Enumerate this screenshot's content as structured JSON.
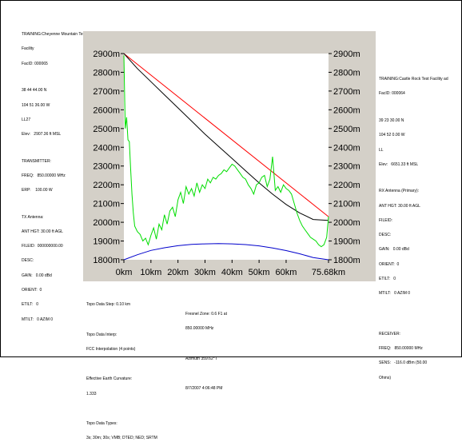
{
  "left_panel": {
    "title": "TRAINING:Cheyenne Mountain Test",
    "title2": "Facility",
    "facid": "FacID: 000065",
    "lat": "38 44 44.00 N",
    "lon": "104 51 36.00 W",
    "datum": "LL27",
    "elev": "Elev:   2907.36 ft MSL",
    "transmitter_header": "TRANSMITTER:",
    "freq": "FREQ:   850.00000 MHz",
    "erp": "ERP:    100.00 W",
    "antenna_header": "TX Antenna:",
    "ant_hgt": "ANT HGT: 30.00 ft AGL",
    "fileid": "FILEID:  000000000.00",
    "desc": "DESC:",
    "gain": "GAIN:   0.00 dBd",
    "orient": "ORIENT:  0",
    "etilt": "ETILT:   0",
    "mtilt": "MTILT:   0 AZIM 0"
  },
  "right_panel": {
    "title": "TRAINING:Castle Rock Test Facility ad",
    "facid": "FacID: 000064",
    "lat": "39 23 30.00 N",
    "lon": "104 52 0.00 W",
    "datum": "LL",
    "elev": "Elev:   6651.33 ft MSL",
    "antenna_header": "RX Antenna (Primary):",
    "ant_hgt": "ANT HGT: 30.00 ft AGL",
    "fileid": "FILEID:",
    "desc": "DESC:",
    "gain": "GAIN:   0.00 dBd",
    "orient": "ORIENT:  0",
    "etilt": "ETILT:   0",
    "mtilt": "MTILT:   0 AZIM 0",
    "receiver_header": "RECEIVER:",
    "freq": "FREQ:   850.00000 MHz",
    "sens": "SENS:   -116.0 dBm (50.00",
    "sens2": "Ohms)"
  },
  "bottom_panel": {
    "step": "Topo Data Step: 0.10 km",
    "interp_header": "Topo Data Interp:",
    "interp": "FCC Interpolation (4 points)",
    "curv_header": "Effective Earth Curvature:",
    "curv": "1.333",
    "types_header": "Topo Data Types:",
    "types": "3s; 30m; 30s; VMB; DTED; NED; SRTM",
    "fresnel": "Fresnel Zone: 0.6 F1 at",
    "fresnel2": "850.00000 MHz",
    "azimuth": "Azimuth 359.62°T",
    "datetime": "8/7/2007 4:06:48 PM"
  },
  "chart_data": {
    "type": "line",
    "xlabel": "",
    "ylabel": "",
    "xlim": [
      0,
      75.68
    ],
    "ylim": [
      1800,
      2900
    ],
    "x_ticks": [
      0,
      10,
      20,
      30,
      40,
      50,
      60,
      75.68
    ],
    "x_tick_labels": [
      "0km",
      "10km",
      "20km",
      "30km",
      "40km",
      "50km",
      "60km",
      "75.68km"
    ],
    "y_ticks": [
      2900,
      2800,
      2700,
      2600,
      2500,
      2400,
      2300,
      2200,
      2100,
      2000,
      1900,
      1800
    ],
    "y_tick_labels_left": [
      "2900m",
      "2800m",
      "2700m",
      "2600m",
      "2500m",
      "2400m",
      "2300m",
      "2200m",
      "2100m",
      "2000m",
      "1900m",
      "1800m"
    ],
    "y_tick_labels_right": [
      "2900m",
      "2800m",
      "2700m",
      "2600m",
      "2500m",
      "2400m",
      "2300m",
      "2200m",
      "2100m",
      "2000m",
      "1900m",
      "1800m"
    ],
    "grid": false,
    "series": [
      {
        "color": "#ff0000",
        "x": [
          0,
          75.68
        ],
        "y": [
          2900,
          2030
        ]
      },
      {
        "color": "#000000",
        "x": [
          0,
          5,
          10,
          15,
          20,
          25,
          30,
          35,
          40,
          45,
          50,
          55,
          60,
          65,
          70,
          75.68
        ],
        "y": [
          2900,
          2820,
          2750,
          2680,
          2610,
          2540,
          2470,
          2405,
          2340,
          2275,
          2210,
          2150,
          2095,
          2050,
          2015,
          2010
        ]
      },
      {
        "color": "#00dd00",
        "x": [
          0,
          0.5,
          1,
          1.5,
          2,
          2.5,
          3,
          3.5,
          4,
          5,
          6,
          7,
          8,
          9,
          10,
          11,
          12,
          13,
          14,
          15,
          16,
          17,
          18,
          19,
          20,
          21,
          22,
          23,
          24,
          25,
          26,
          27,
          28,
          29,
          30,
          31,
          32,
          33,
          34,
          35,
          36,
          37,
          38,
          39,
          40,
          41,
          42,
          43,
          44,
          45,
          46,
          47,
          48,
          49,
          50,
          51,
          52,
          53,
          54,
          55,
          56,
          57,
          58,
          59,
          60,
          61,
          62,
          63,
          64,
          65,
          66,
          67,
          68,
          69,
          70,
          71,
          72,
          73,
          74,
          75,
          75.68
        ],
        "y": [
          2890,
          2500,
          2560,
          2440,
          2430,
          2280,
          2150,
          2050,
          1980,
          1950,
          1935,
          1900,
          1915,
          1880,
          1930,
          1970,
          1910,
          1990,
          1960,
          2040,
          1990,
          2060,
          2080,
          2030,
          2120,
          2160,
          2100,
          2190,
          2150,
          2180,
          2140,
          2210,
          2160,
          2200,
          2180,
          2230,
          2210,
          2240,
          2230,
          2250,
          2260,
          2280,
          2270,
          2290,
          2310,
          2300,
          2280,
          2260,
          2240,
          2230,
          2200,
          2180,
          2150,
          2200,
          2210,
          2240,
          2250,
          2190,
          2230,
          2350,
          2170,
          2190,
          2160,
          2200,
          2180,
          2170,
          2150,
          2100,
          2050,
          2010,
          1980,
          1960,
          1940,
          1920,
          1910,
          1900,
          1880,
          1870,
          1880,
          1920,
          2030
        ]
      },
      {
        "color": "#0000cc",
        "x": [
          0,
          5,
          10,
          15,
          20,
          25,
          30,
          35,
          40,
          45,
          50,
          55,
          60,
          65,
          70,
          75.68
        ],
        "y": [
          1800,
          1827,
          1850,
          1864,
          1875,
          1882,
          1885,
          1886,
          1885,
          1881,
          1874,
          1863,
          1849,
          1832,
          1812,
          1800
        ]
      }
    ]
  }
}
